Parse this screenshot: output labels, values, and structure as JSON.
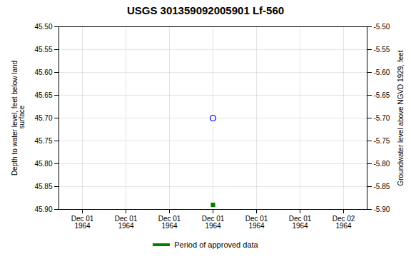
{
  "chart_data": {
    "type": "scatter",
    "title": "USGS 301359092005901 Lf-560",
    "ylabel": "Depth to water level, feet below land\n surface",
    "y2label": "Groundwater level above NGVD 1929, feet",
    "categories": [
      "Dec 01\n1964",
      "Dec 01\n1964",
      "Dec 01\n1964",
      "Dec 01\n1964",
      "Dec 01\n1964",
      "Dec 01\n1964",
      "Dec 02\n1964"
    ],
    "series": [
      {
        "color": "blue",
        "marker": "circle",
        "values": [
          null,
          null,
          null,
          45.7,
          null,
          null,
          null
        ]
      },
      {
        "name": "Period of approved data",
        "color": "#008000",
        "marker": "square",
        "values": [
          null,
          null,
          null,
          45.89,
          null,
          null,
          null
        ]
      }
    ],
    "ylim": [
      45.9,
      45.5
    ],
    "yticks": [
      {
        "value": 45.5,
        "label": "45.50"
      },
      45.55,
      {
        "value": 45.6,
        "label": "45.60"
      },
      45.65,
      {
        "value": 45.7,
        "label": "45.70"
      },
      45.75,
      {
        "value": 45.8,
        "label": "45.80"
      },
      45.85,
      {
        "value": 45.9,
        "label": "45.90"
      }
    ],
    "y2lim": [
      -5.9,
      -5.5
    ],
    "y2ticks": [
      {
        "value": -5.5,
        "label": "-5.50"
      },
      -5.55,
      {
        "value": -5.6,
        "label": "-5.60"
      },
      -5.65,
      {
        "value": -5.7,
        "label": "-5.70"
      },
      -5.75,
      {
        "value": -5.8,
        "label": "-5.80"
      },
      -5.85,
      {
        "value": -5.9,
        "label": "-5.90"
      }
    ],
    "grid": true,
    "legend": "bottom"
  }
}
